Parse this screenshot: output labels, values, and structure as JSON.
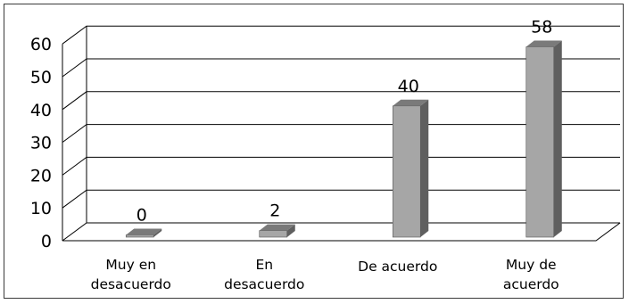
{
  "chart_data": {
    "type": "bar",
    "categories": [
      [
        "Muy en",
        "desacuerdo"
      ],
      [
        "En",
        "desacuerdo"
      ],
      [
        "De acuerdo"
      ],
      [
        "Muy de",
        "acuerdo"
      ]
    ],
    "values": [
      0,
      2,
      40,
      58
    ],
    "data_labels": [
      "0",
      "2",
      "40",
      "58"
    ],
    "title": "",
    "xlabel": "",
    "ylabel": "",
    "ylim": [
      0,
      60
    ],
    "yticks": [
      0,
      10,
      20,
      30,
      40,
      50,
      60
    ],
    "grid": true,
    "style": "3d-column",
    "colors": {
      "bar_front": "#a6a6a6",
      "bar_side": "#5f5f5f",
      "bar_top": "#7a7a7a",
      "grid": "#000000"
    }
  }
}
